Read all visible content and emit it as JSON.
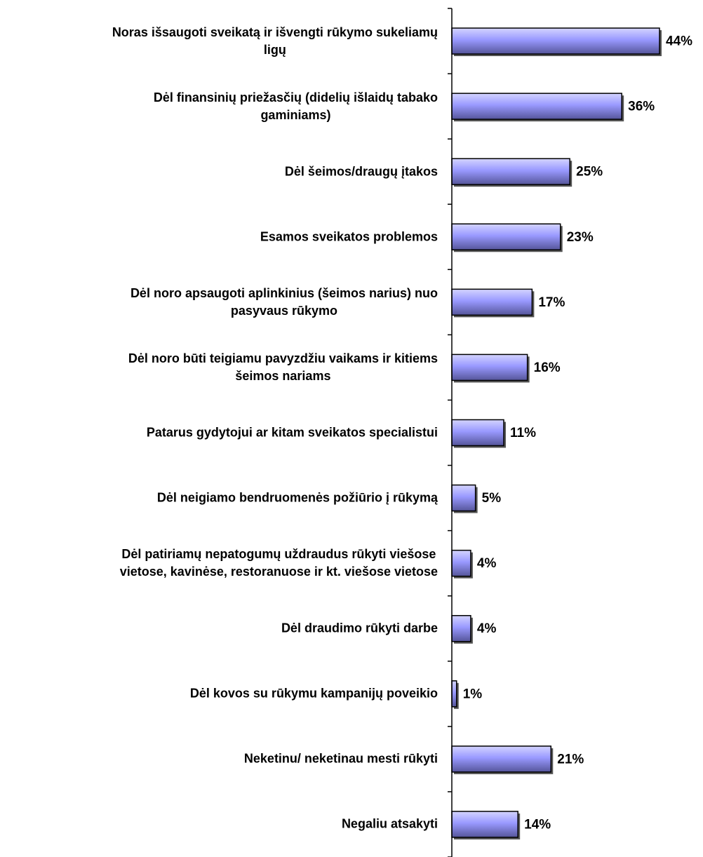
{
  "chart_data": {
    "type": "bar",
    "orientation": "horizontal",
    "categories": [
      "Noras išsaugoti sveikatą ir išvengti rūkymo sukeliamų\nligų",
      "Dėl finansinių priežasčių (didelių išlaidų tabako\ngaminiams)",
      "Dėl šeimos/draugų įtakos",
      "Esamos sveikatos problemos",
      "Dėl noro apsaugoti aplinkinius (šeimos narius) nuo\npasyvaus rūkymo",
      "Dėl noro būti teigiamu pavyzdžiu vaikams ir kitiems\nšeimos nariams",
      "Patarus gydytojui ar kitam sveikatos specialistui",
      "Dėl neigiamo bendruomenės požiūrio į rūkymą",
      "Dėl patiriamų nepatogumų uždraudus rūkyti viešose\nvietose, kavinėse, restoranuose ir kt. viešose vietose",
      "Dėl draudimo rūkyti darbe",
      "Dėl kovos su rūkymu kampanijų poveikio",
      "Neketinu/ neketinau mesti rūkyti",
      "Negaliu atsakyti"
    ],
    "values": [
      44,
      36,
      25,
      23,
      17,
      16,
      11,
      5,
      4,
      4,
      1,
      21,
      14
    ],
    "value_labels": [
      "44%",
      "36%",
      "25%",
      "23%",
      "17%",
      "16%",
      "11%",
      "5%",
      "4%",
      "4%",
      "1%",
      "21%",
      "14%"
    ],
    "color": "#9999ff"
  }
}
